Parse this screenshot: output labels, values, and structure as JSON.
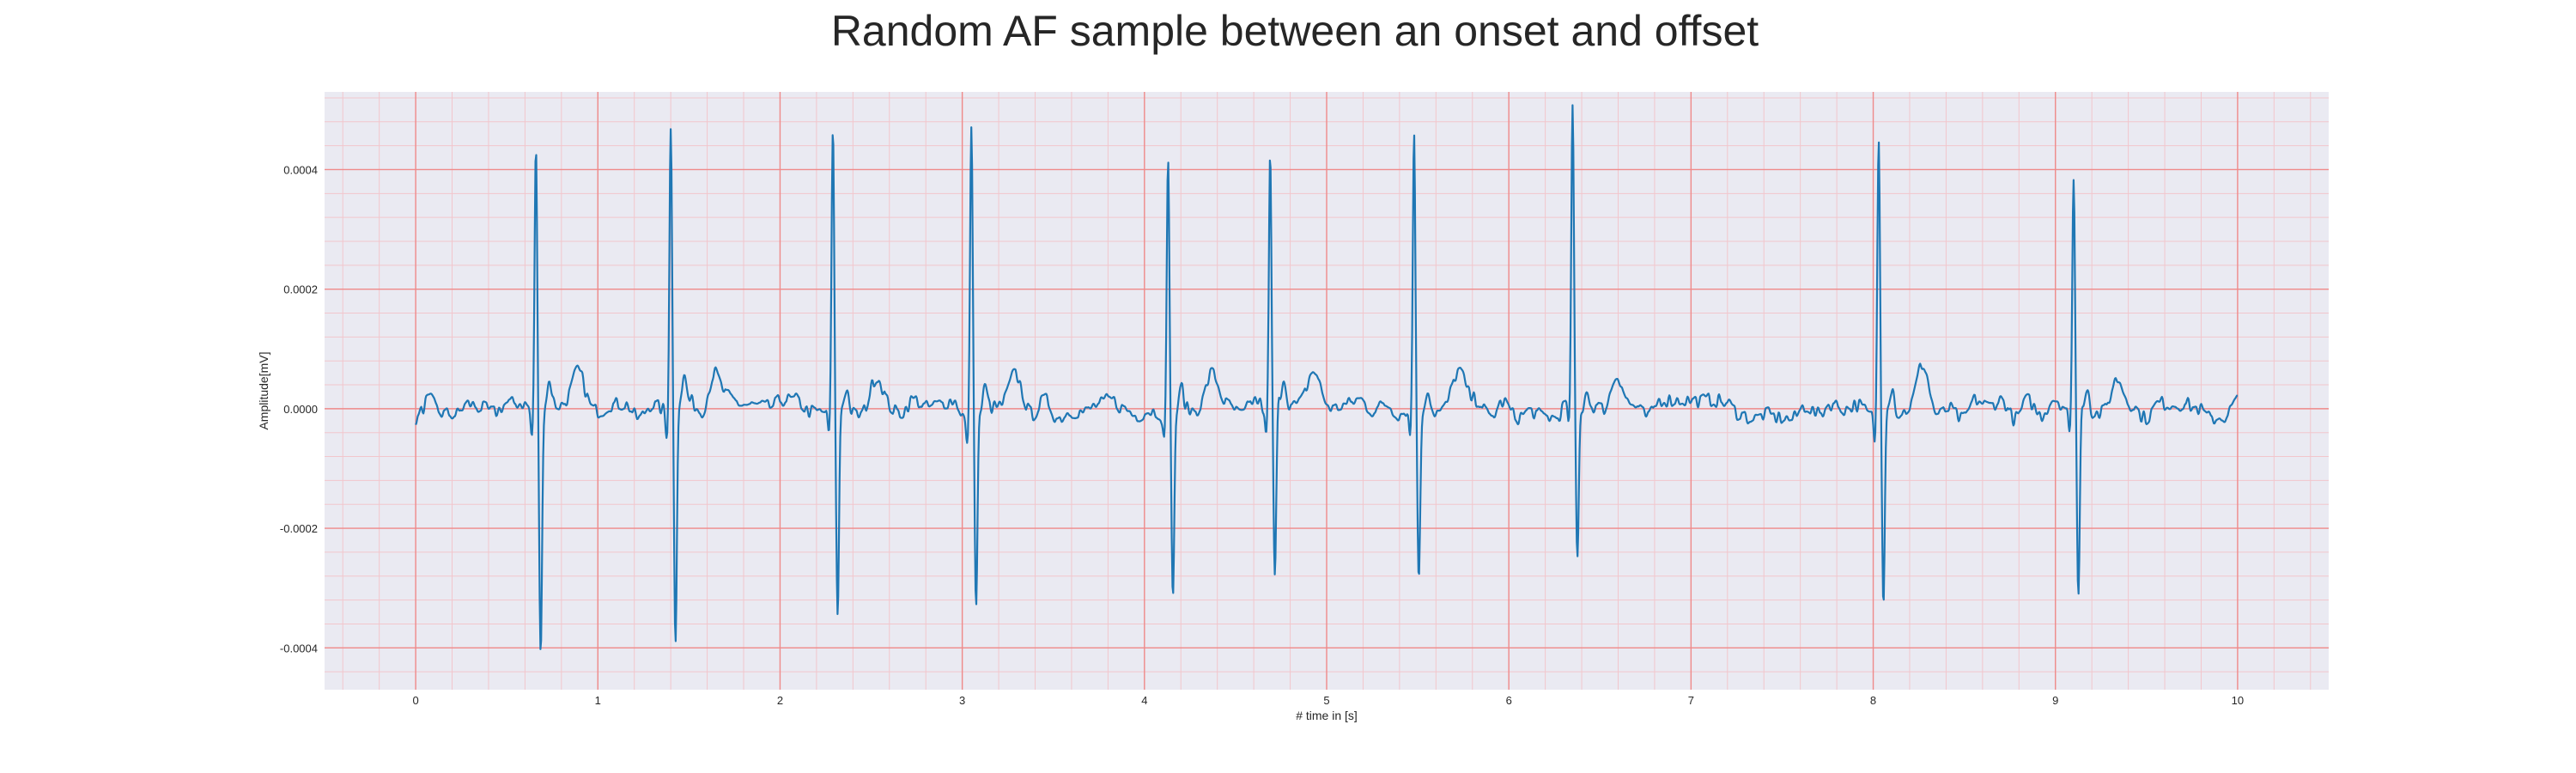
{
  "chart_data": {
    "type": "line",
    "title": "Random AF sample between an onset and offset",
    "xlabel": "# time in [s]",
    "ylabel": "Amplitude[mV]",
    "xlim": [
      -0.5,
      10.5
    ],
    "ylim": [
      -0.00047,
      0.00053
    ],
    "x_ticks": [
      0,
      1,
      2,
      3,
      4,
      5,
      6,
      7,
      8,
      9,
      10
    ],
    "x_tick_labels": [
      "0",
      "1",
      "2",
      "3",
      "4",
      "5",
      "6",
      "7",
      "8",
      "9",
      "10"
    ],
    "y_ticks": [
      -0.0004,
      -0.0002,
      0.0,
      0.0002,
      0.0004
    ],
    "y_tick_labels": [
      "-0.0004",
      "-0.0002",
      "0.0000",
      "0.0002",
      "0.0004"
    ],
    "grid": true,
    "minor_grid": true,
    "colors": {
      "plot_background": "#eaeaf2",
      "major_grid": "#ef8a8a",
      "minor_grid": "#f2c6cc",
      "line": "#1f77b4"
    },
    "beats": [
      {
        "t": 0.66,
        "peak": 0.00043,
        "trough": -0.00042
      },
      {
        "t": 1.4,
        "peak": 0.00047,
        "trough": -0.0004
      },
      {
        "t": 2.29,
        "peak": 0.00045,
        "trough": -0.00036
      },
      {
        "t": 3.05,
        "peak": 0.00049,
        "trough": -0.00031
      },
      {
        "t": 4.13,
        "peak": 0.00043,
        "trough": -0.00031
      },
      {
        "t": 4.69,
        "peak": 0.00042,
        "trough": -0.00029
      },
      {
        "t": 5.48,
        "peak": 0.00046,
        "trough": -0.00029
      },
      {
        "t": 6.35,
        "peak": 0.00049,
        "trough": -0.00025
      },
      {
        "t": 8.03,
        "peak": 0.00044,
        "trough": -0.00033
      },
      {
        "t": 9.1,
        "peak": 0.00039,
        "trough": -0.00032
      }
    ],
    "signal_range": [
      0.0,
      10.0
    ]
  }
}
